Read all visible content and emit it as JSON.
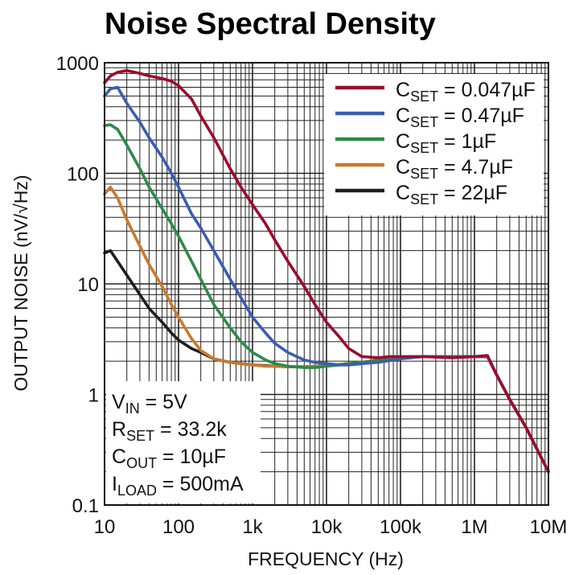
{
  "chart_data": {
    "type": "line",
    "title": "Noise Spectral Density",
    "xlabel": "FREQUENCY (Hz)",
    "ylabel": "OUTPUT NOISE (nV/√Hz)",
    "xscale": "log",
    "yscale": "log",
    "xlim": [
      10,
      10000000
    ],
    "ylim": [
      0.1,
      1000
    ],
    "x_ticks": [
      10,
      100,
      1000,
      10000,
      100000,
      1000000,
      10000000
    ],
    "x_tick_labels": [
      "10",
      "100",
      "1k",
      "10k",
      "100k",
      "1M",
      "10M"
    ],
    "y_ticks": [
      0.1,
      1,
      10,
      100,
      1000
    ],
    "y_tick_labels": [
      "0.1",
      "1",
      "10",
      "100",
      "1000"
    ],
    "grid": true,
    "legend_position": "top-right",
    "series": [
      {
        "label_main": "C",
        "label_sub": "SET",
        "label_value": " = 0.047µF",
        "color": "#9b0c2c",
        "x": [
          10,
          12,
          15,
          20,
          30,
          40,
          60,
          80,
          100,
          150,
          200,
          300,
          500,
          700,
          1000,
          1500,
          2000,
          3000,
          5000,
          7000,
          10000,
          15000,
          20000,
          30000,
          50000,
          70000,
          100000,
          200000,
          500000,
          1000000,
          1500000,
          2000000,
          3000000,
          5000000,
          10000000
        ],
        "y": [
          660,
          760,
          820,
          850,
          800,
          760,
          720,
          680,
          620,
          470,
          330,
          210,
          110,
          75,
          52,
          35,
          25,
          16,
          9.5,
          6.5,
          4.5,
          3.3,
          2.6,
          2.2,
          2.15,
          2.2,
          2.2,
          2.2,
          2.15,
          2.2,
          2.25,
          1.5,
          0.9,
          0.5,
          0.2
        ]
      },
      {
        "label_main": "C",
        "label_sub": "SET",
        "label_value": " = 0.47µF",
        "color": "#3a5db0",
        "x": [
          10,
          12,
          15,
          20,
          30,
          40,
          60,
          80,
          100,
          150,
          200,
          300,
          500,
          700,
          1000,
          1500,
          2000,
          3000,
          5000,
          7000,
          10000,
          15000,
          20000,
          30000,
          50000,
          100000,
          200000,
          500000,
          1000000,
          1500000,
          2000000,
          3000000,
          5000000,
          10000000
        ],
        "y": [
          500,
          580,
          600,
          430,
          290,
          210,
          140,
          100,
          75,
          43,
          32,
          20,
          11,
          7.5,
          5.0,
          3.6,
          2.9,
          2.4,
          2.05,
          1.95,
          1.9,
          1.85,
          1.85,
          1.9,
          1.95,
          2.1,
          2.2,
          2.2,
          2.2,
          2.2,
          1.5,
          0.9,
          0.5,
          0.2
        ]
      },
      {
        "label_main": "C",
        "label_sub": "SET",
        "label_value": " = 1µF",
        "color": "#2e8a48",
        "x": [
          10,
          12,
          15,
          20,
          30,
          40,
          60,
          80,
          100,
          150,
          200,
          300,
          500,
          700,
          1000,
          1500,
          2000,
          3000,
          5000,
          7000,
          10000,
          15000,
          20000,
          30000,
          50000,
          100000,
          200000,
          500000,
          1000000,
          1500000,
          2000000,
          3000000,
          5000000,
          10000000
        ],
        "y": [
          270,
          275,
          250,
          180,
          110,
          75,
          48,
          35,
          27,
          16,
          11,
          6.5,
          4.0,
          3.0,
          2.4,
          2.05,
          1.9,
          1.8,
          1.75,
          1.75,
          1.8,
          1.85,
          1.9,
          1.95,
          2.05,
          2.15,
          2.2,
          2.2,
          2.2,
          2.2,
          1.5,
          0.9,
          0.5,
          0.2
        ]
      },
      {
        "label_main": "C",
        "label_sub": "SET",
        "label_value": " = 4.7µF",
        "color": "#c87a2e",
        "x": [
          10,
          12,
          15,
          20,
          30,
          40,
          60,
          80,
          100,
          150,
          200,
          300,
          500,
          700,
          1000,
          1500,
          2000,
          3000,
          5000,
          7000,
          10000,
          20000,
          30000,
          50000,
          100000,
          200000,
          500000,
          1000000,
          1500000,
          2000000,
          3000000,
          5000000,
          10000000
        ],
        "y": [
          65,
          75,
          60,
          38,
          22,
          15,
          9.5,
          6.5,
          5.0,
          3.2,
          2.5,
          2.1,
          1.95,
          1.9,
          1.85,
          1.8,
          1.8,
          1.78,
          1.78,
          1.8,
          1.82,
          1.9,
          1.95,
          2.05,
          2.15,
          2.2,
          2.2,
          2.2,
          2.2,
          1.5,
          0.9,
          0.5,
          0.2
        ]
      },
      {
        "label_main": "C",
        "label_sub": "SET",
        "label_value": " = 22µF",
        "color": "#1e1e1e",
        "x": [
          10,
          12,
          15,
          20,
          30,
          40,
          60,
          80,
          100,
          150,
          200,
          300,
          500,
          700,
          1000,
          1500,
          2000,
          3000,
          5000,
          7000,
          10000,
          20000,
          30000,
          50000,
          100000,
          200000,
          500000,
          1000000,
          1500000,
          2000000,
          3000000,
          5000000,
          10000000
        ],
        "y": [
          19,
          20,
          16,
          12,
          8.0,
          6.0,
          4.5,
          3.6,
          3.1,
          2.6,
          2.4,
          2.1,
          1.95,
          1.9,
          1.85,
          1.82,
          1.8,
          1.78,
          1.78,
          1.8,
          1.82,
          1.9,
          1.95,
          2.05,
          2.15,
          2.2,
          2.2,
          2.2,
          2.2,
          1.5,
          0.9,
          0.5,
          0.2
        ]
      }
    ],
    "annotations": [
      {
        "main": "V",
        "sub": "IN",
        "value": " = 5V"
      },
      {
        "main": "R",
        "sub": "SET",
        "value": " = 33.2k"
      },
      {
        "main": "C",
        "sub": "OUT",
        "value": " = 10µF"
      },
      {
        "main": "I",
        "sub": "LOAD",
        "value": " = 500mA"
      }
    ]
  }
}
